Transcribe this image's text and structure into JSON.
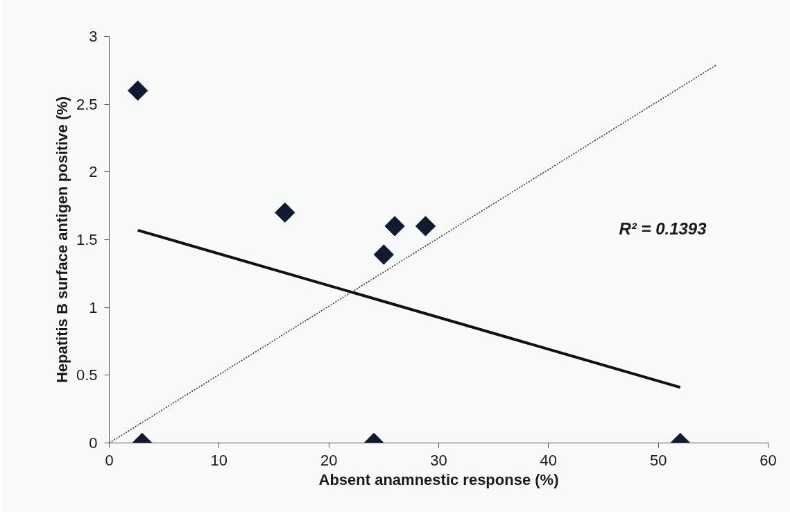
{
  "chart_data": {
    "type": "scatter",
    "xlabel": "Absent anamnestic response (%)",
    "ylabel": "Hepatitis B surface antigen positive (%)",
    "xlim": [
      0,
      60
    ],
    "ylim": [
      0,
      3
    ],
    "xticks": [
      0,
      10,
      20,
      30,
      40,
      50,
      60
    ],
    "yticks": [
      0,
      0.5,
      1,
      1.5,
      2,
      2.5,
      3
    ],
    "grid": false,
    "series": [
      {
        "color": "#101a30",
        "marker": "diamond",
        "x": [
          2.6,
          3.0,
          16.0,
          24.1,
          25.0,
          26.0,
          28.8,
          52.0
        ],
        "values": [
          2.6,
          0,
          1.7,
          0,
          1.39,
          1.6,
          1.6,
          0
        ]
      },
      {
        "type": "line",
        "color": "#111111",
        "line_style": "solid",
        "x": [
          2.6,
          52.0
        ],
        "values": [
          1.57,
          0.41
        ]
      },
      {
        "type": "line",
        "color": "#333333",
        "line_style": "dotted",
        "x": [
          0,
          55.3
        ],
        "values": [
          0,
          2.79
        ]
      }
    ],
    "annotations": [
      "R² = 0.1393"
    ]
  }
}
